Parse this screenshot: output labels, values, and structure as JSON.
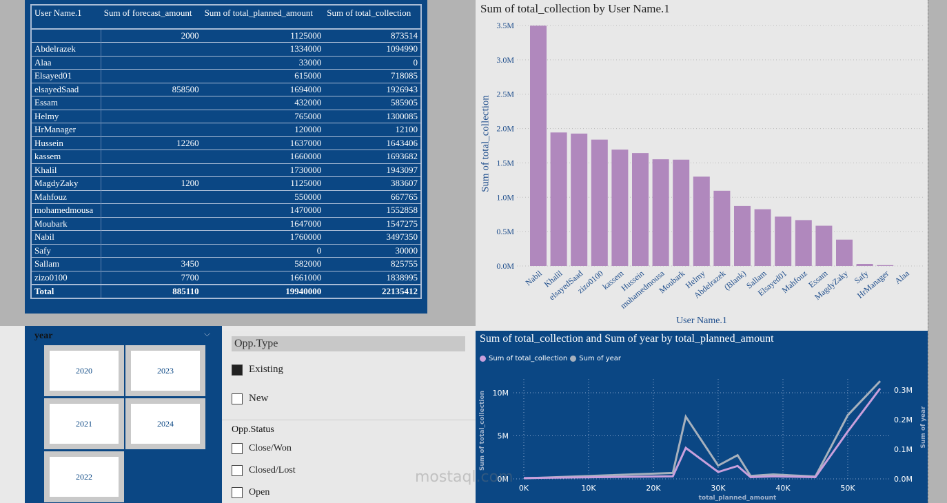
{
  "table": {
    "headers": [
      "User Name.1",
      "Sum of forecast_amount",
      "Sum of total_planned_amount",
      "Sum of total_collection"
    ],
    "rows": [
      [
        "",
        "2000",
        "1125000",
        "873514"
      ],
      [
        "Abdelrazek",
        "",
        "1334000",
        "1094990"
      ],
      [
        "Alaa",
        "",
        "33000",
        "0"
      ],
      [
        "Elsayed01",
        "",
        "615000",
        "718085"
      ],
      [
        "elsayedSaad",
        "858500",
        "1694000",
        "1926943"
      ],
      [
        "Essam",
        "",
        "432000",
        "585905"
      ],
      [
        "Helmy",
        "",
        "765000",
        "1300085"
      ],
      [
        "HrManager",
        "",
        "120000",
        "12100"
      ],
      [
        "Hussein",
        "12260",
        "1637000",
        "1643406"
      ],
      [
        "kassem",
        "",
        "1660000",
        "1693682"
      ],
      [
        "Khalil",
        "",
        "1730000",
        "1943097"
      ],
      [
        "MagdyZaky",
        "1200",
        "1125000",
        "383607"
      ],
      [
        "Mahfouz",
        "",
        "550000",
        "667765"
      ],
      [
        "mohamedmousa",
        "",
        "1470000",
        "1552858"
      ],
      [
        "Moubark",
        "",
        "1647000",
        "1547275"
      ],
      [
        "Nabil",
        "",
        "1760000",
        "3497350"
      ],
      [
        "Safy",
        "",
        "0",
        "30000"
      ],
      [
        "Sallam",
        "3450",
        "582000",
        "825755"
      ],
      [
        "zizo0100",
        "7700",
        "1661000",
        "1838995"
      ]
    ],
    "total": [
      "Total",
      "885110",
      "19940000",
      "22135412"
    ]
  },
  "chart_data": [
    {
      "type": "bar",
      "title": "Sum of total_collection by User Name.1",
      "xlabel": "User Name.1",
      "ylabel": "Sum of total_collection",
      "ylim": [
        0,
        3500000
      ],
      "color": "#b088bd",
      "yticks": [
        "0.0M",
        "0.5M",
        "1.0M",
        "1.5M",
        "2.0M",
        "2.5M",
        "3.0M",
        "3.5M"
      ],
      "categories": [
        "Nabil",
        "Khalil",
        "elsayedSaad",
        "zizo0100",
        "kassem",
        "Hussein",
        "mohamedmousa",
        "Moubark",
        "Helmy",
        "Abdelrazek",
        "(Blank)",
        "Sallam",
        "Elsayed01",
        "Mahfouz",
        "Essam",
        "MagdyZaky",
        "Safy",
        "HrManager",
        "Alaa"
      ],
      "values": [
        3497350,
        1943097,
        1926943,
        1838995,
        1693682,
        1643406,
        1552858,
        1547275,
        1300085,
        1094990,
        873514,
        825755,
        718085,
        667765,
        585905,
        383607,
        30000,
        12100,
        0
      ]
    },
    {
      "type": "line",
      "title": "Sum of total_collection and Sum of year by total_planned_amount",
      "xlabel": "total_planned_amount",
      "ylabel": "Sum of total_collection",
      "y2label": "Sum of year",
      "xticks": [
        "0K",
        "10K",
        "20K",
        "30K",
        "40K",
        "50K"
      ],
      "yticks": [
        "0M",
        "5M",
        "10M"
      ],
      "y2ticks": [
        "0.0M",
        "0.1M",
        "0.2M",
        "0.3M"
      ],
      "x": [
        0,
        23000,
        25000,
        30000,
        33000,
        35000,
        38500,
        45000,
        50000,
        55000
      ],
      "series": [
        {
          "name": "Sum of total_collection",
          "color": "#c9a0dc",
          "axis": "left",
          "values": [
            100000,
            300000,
            3600000,
            800000,
            1500000,
            200000,
            300000,
            200000,
            5500000,
            10500000
          ]
        },
        {
          "name": "Sum of year",
          "color": "#a7b1bd",
          "axis": "right",
          "values": [
            2000,
            20000,
            210000,
            45000,
            80000,
            10000,
            15000,
            8000,
            215000,
            330000
          ]
        }
      ]
    }
  ],
  "year_slicer": {
    "title": "year",
    "options": [
      "2020",
      "2023",
      "2021",
      "2024",
      "2022"
    ]
  },
  "opp_type": {
    "title": "Opp.Type",
    "options": [
      {
        "label": "Existing",
        "checked": true
      },
      {
        "label": "New",
        "checked": false
      }
    ]
  },
  "opp_status": {
    "title": "Opp.Status",
    "options": [
      "Close/Won",
      "Closed/Lost",
      "Open"
    ]
  },
  "watermark": "mostaql.com"
}
